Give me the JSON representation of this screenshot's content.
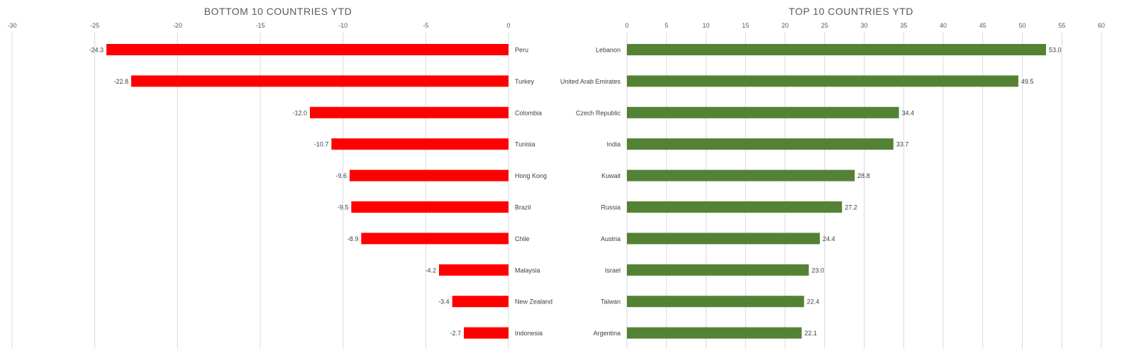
{
  "chart_data": [
    {
      "type": "bar",
      "orientation": "horizontal",
      "title": "BOTTOM 10 COUNTRIES YTD",
      "categories": [
        "Peru",
        "Turkey",
        "Colombia",
        "Tunisia",
        "Hong Kong",
        "Brazil",
        "Chile",
        "Malaysia",
        "New Zealand",
        "Indonesia"
      ],
      "values": [
        -24.3,
        -22.8,
        -12.0,
        -10.7,
        -9.6,
        -9.5,
        -8.9,
        -4.2,
        -3.4,
        -2.7
      ],
      "value_labels": [
        "-24.3",
        "-22.8",
        "-12.0",
        "-10.7",
        "-9.6",
        "-9.5",
        "-8.9",
        "-4.2",
        "-3.4",
        "-2.7"
      ],
      "xlim": [
        -30,
        0
      ],
      "ticks": [
        -30,
        -25,
        -20,
        -15,
        -10,
        -5,
        0
      ],
      "tick_labels": [
        "-30",
        "-25",
        "-20",
        "-15",
        "-10",
        "-5",
        "0"
      ],
      "axis_position": "top",
      "category_labels_side": "right",
      "grid": true,
      "legend": "none",
      "color": "#ff0000"
    },
    {
      "type": "bar",
      "orientation": "horizontal",
      "title": "TOP 10 COUNTRIES YTD",
      "categories": [
        "Lebanon",
        "United Arab Emirates",
        "Czech Republic",
        "India",
        "Kuwait",
        "Russia",
        "Austria",
        "Israel",
        "Taiwan",
        "Argentina"
      ],
      "values": [
        53.0,
        49.5,
        34.4,
        33.7,
        28.8,
        27.2,
        24.4,
        23.0,
        22.4,
        22.1
      ],
      "value_labels": [
        "53.0",
        "49.5",
        "34.4",
        "33.7",
        "28.8",
        "27.2",
        "24.4",
        "23.0",
        "22.4",
        "22.1"
      ],
      "xlim": [
        0,
        60
      ],
      "ticks": [
        0,
        5,
        10,
        15,
        20,
        25,
        30,
        35,
        40,
        45,
        50,
        55,
        60
      ],
      "tick_labels": [
        "0",
        "5",
        "10",
        "15",
        "20",
        "25",
        "30",
        "35",
        "40",
        "45",
        "50",
        "55",
        "60"
      ],
      "axis_position": "top",
      "category_labels_side": "left",
      "grid": true,
      "legend": "none",
      "color": "#548235"
    }
  ]
}
